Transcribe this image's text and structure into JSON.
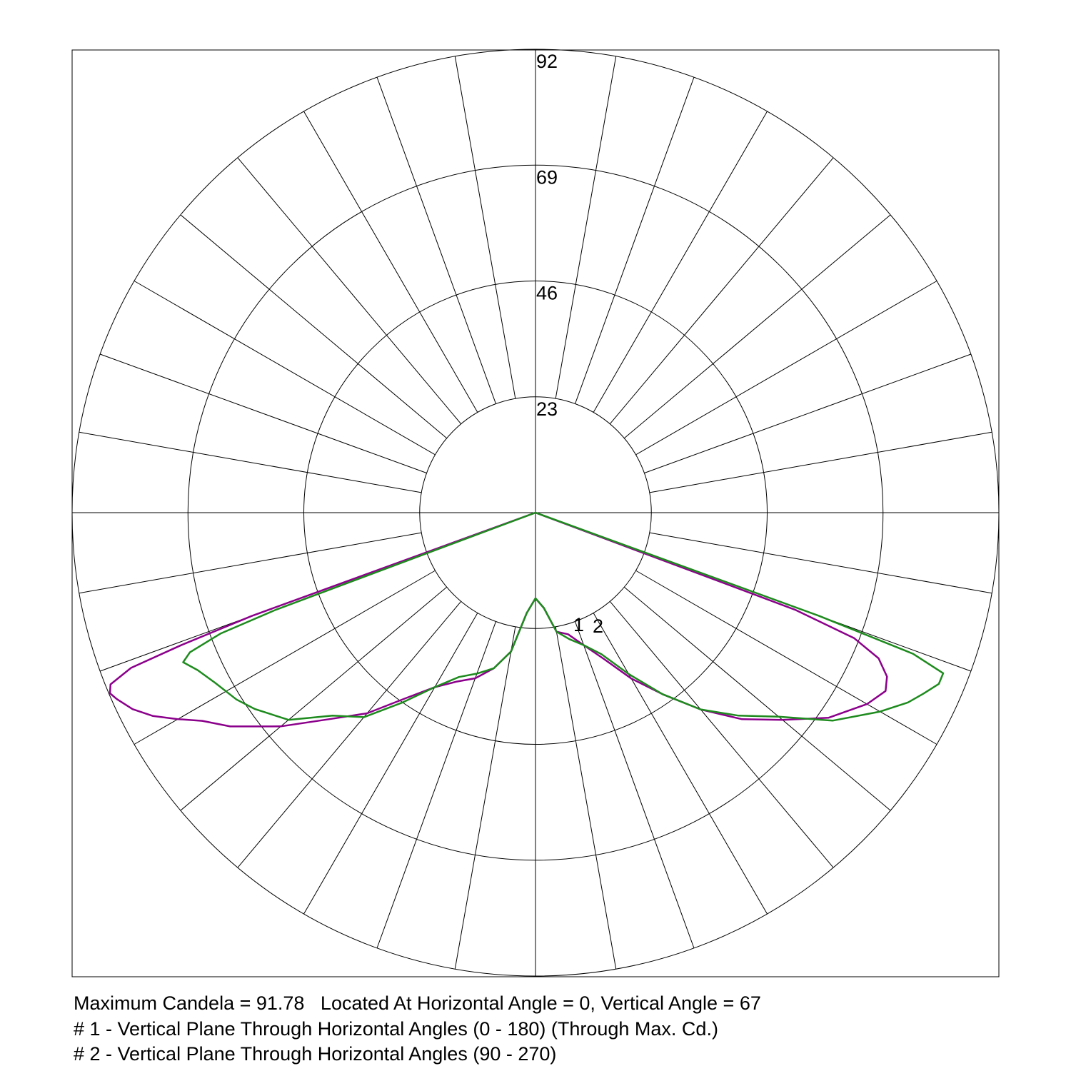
{
  "chart_data": {
    "type": "polar-line",
    "subtype": "photometric-candela-distribution",
    "radial_unit": "candela",
    "r_max": 92,
    "r_ticks": [
      23,
      46,
      69,
      92
    ],
    "r_tick_labels": [
      "23",
      "46",
      "69",
      "92"
    ],
    "angle_grid_step_deg": 10,
    "angle_convention": "vertical angle measured from nadir (straight down = 0°)",
    "grid": true,
    "series": [
      {
        "name": "1",
        "color": "#8B008B",
        "points_left": [
          [
            0,
            17
          ],
          [
            5,
            20
          ],
          [
            10,
            28
          ],
          [
            15,
            32
          ],
          [
            20,
            35
          ],
          [
            25,
            37
          ],
          [
            30,
            40
          ],
          [
            35,
            45
          ],
          [
            40,
            52
          ],
          [
            45,
            58
          ],
          [
            50,
            66
          ],
          [
            55,
            74
          ],
          [
            58,
            78
          ],
          [
            60,
            82
          ],
          [
            62,
            86
          ],
          [
            64,
            89
          ],
          [
            66,
            91
          ],
          [
            67,
            91.78
          ],
          [
            68,
            91
          ],
          [
            69,
            86
          ],
          [
            69.5,
            75
          ],
          [
            70,
            60
          ],
          [
            70,
            0
          ]
        ],
        "points_right": [
          [
            0,
            17
          ],
          [
            5,
            19
          ],
          [
            10,
            24
          ],
          [
            15,
            25
          ],
          [
            20,
            28
          ],
          [
            25,
            32
          ],
          [
            30,
            38
          ],
          [
            35,
            44
          ],
          [
            40,
            51
          ],
          [
            45,
            58
          ],
          [
            50,
            64
          ],
          [
            55,
            71
          ],
          [
            60,
            76
          ],
          [
            63,
            78
          ],
          [
            65,
            77
          ],
          [
            67,
            74
          ],
          [
            68.5,
            68
          ],
          [
            69.5,
            55
          ],
          [
            70,
            0
          ]
        ]
      },
      {
        "name": "2",
        "color": "#1E8B1E",
        "points_left": [
          [
            0,
            17
          ],
          [
            5,
            20
          ],
          [
            10,
            28
          ],
          [
            15,
            32
          ],
          [
            20,
            34
          ],
          [
            25,
            36
          ],
          [
            30,
            40
          ],
          [
            35,
            46
          ],
          [
            40,
            53
          ],
          [
            45,
            57
          ],
          [
            50,
            64
          ],
          [
            55,
            68
          ],
          [
            58,
            70
          ],
          [
            62,
            72
          ],
          [
            65,
            74
          ],
          [
            67,
            76
          ],
          [
            68,
            74
          ],
          [
            69,
            67
          ],
          [
            69.5,
            55
          ],
          [
            70,
            0
          ]
        ],
        "points_right": [
          [
            0,
            17
          ],
          [
            5,
            19
          ],
          [
            10,
            24
          ],
          [
            15,
            26
          ],
          [
            20,
            28
          ],
          [
            25,
            31
          ],
          [
            30,
            37
          ],
          [
            35,
            44
          ],
          [
            40,
            51
          ],
          [
            45,
            57
          ],
          [
            50,
            63
          ],
          [
            55,
            72
          ],
          [
            60,
            79
          ],
          [
            63,
            83
          ],
          [
            65,
            85
          ],
          [
            67,
            87
          ],
          [
            68.5,
            87
          ],
          [
            69.5,
            80
          ],
          [
            70,
            60
          ],
          [
            70,
            0
          ]
        ]
      }
    ],
    "series_labels": [
      "1",
      "2"
    ]
  },
  "captions": {
    "line1": "Maximum Candela = 91.78   Located At Horizontal Angle = 0, Vertical Angle = 67",
    "line2": "# 1 - Vertical Plane Through Horizontal Angles (0 - 180) (Through Max. Cd.)",
    "line3": "# 2 - Vertical Plane Through Horizontal Angles (90 - 270)"
  }
}
